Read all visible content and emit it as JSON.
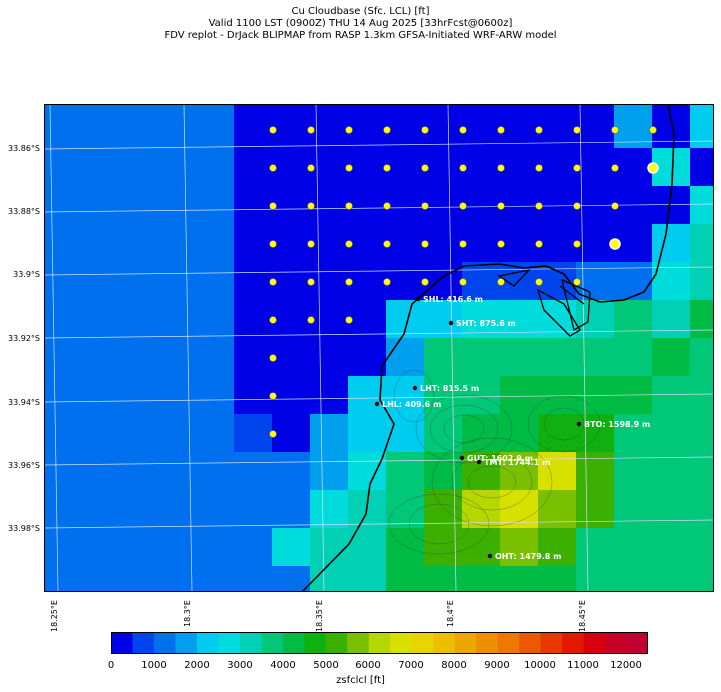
{
  "title": {
    "line1": "Cu Cloudbase (Sfc. LCL) [ft]",
    "line2": "Valid 1100 LST (0900Z) THU 14 Aug 2025 [33hrFcst@0600z]",
    "line3": "FDV replot - DrJack BLIPMAP from RASP 1.3km GFSA-Initiated WRF-ARW model"
  },
  "lat_labels": [
    "33.86°S",
    "33.88°S",
    "33.9°S",
    "33.92°S",
    "33.94°S",
    "33.96°S",
    "33.98°S"
  ],
  "lon_labels": [
    "18.25°E",
    "18.3°E",
    "18.35°E",
    "18.4°E",
    "18.45°E"
  ],
  "colorbar": {
    "label": "zsfclcl [ft]",
    "ticks": [
      "0",
      "1000",
      "2000",
      "3000",
      "4000",
      "5000",
      "6000",
      "7000",
      "8000",
      "9000",
      "10000",
      "11000",
      "12000"
    ],
    "colors": [
      "#0000e6",
      "#0044ee",
      "#0070ee",
      "#00a0ee",
      "#00ccf0",
      "#00dcdc",
      "#00d0b4",
      "#00c878",
      "#00bb44",
      "#10b010",
      "#3cb000",
      "#78c000",
      "#b4d800",
      "#d8e000",
      "#e8d400",
      "#ecc000",
      "#eca800",
      "#ec9000",
      "#ec7800",
      "#ec5800",
      "#e83800",
      "#e41800",
      "#d80010",
      "#c80028",
      "#c00030"
    ]
  },
  "sites": [
    {
      "label": "SHL: 416.6 m"
    },
    {
      "label": "SHT: 875.6 m"
    },
    {
      "label": "LHT: 815.5 m"
    },
    {
      "label": "LHL: 409.6 m"
    },
    {
      "label": "BTO: 1598.9 m"
    },
    {
      "label": "GUT: 1602.9 m"
    },
    {
      "label": "TMT: 1744.1 m"
    },
    {
      "label": "OHT: 1479.8 m"
    }
  ],
  "legend_colors": {
    "sea_deep": "#0000e6",
    "sea": "#0070ee",
    "point": "#ffff00"
  }
}
